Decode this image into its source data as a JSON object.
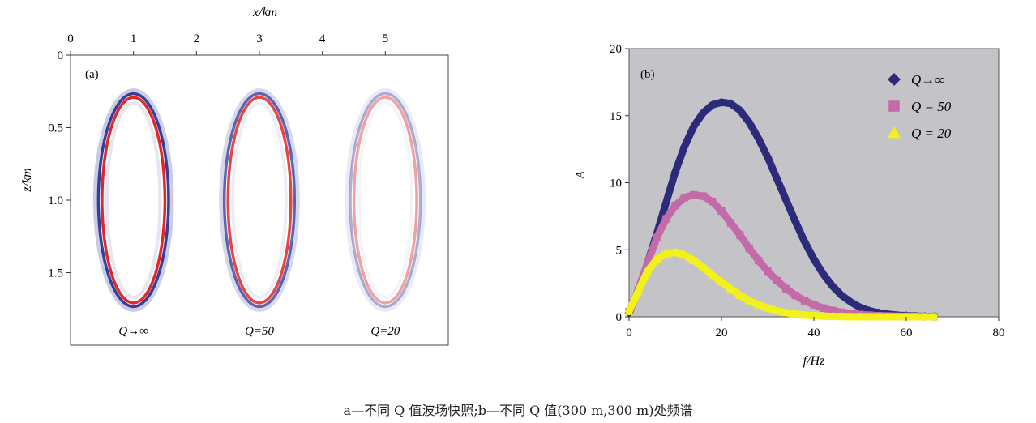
{
  "caption": "a—不同 Q 值波场快照;b—不同 Q 值(300 m,300 m)处频谱",
  "chart_data": [
    {
      "type": "heatmap",
      "panel_label": "(a)",
      "xlabel": "x/km",
      "ylabel": "z/km",
      "xlim": [
        0,
        6
      ],
      "ylim": [
        0,
        2.0
      ],
      "x_ticks": [
        0,
        1,
        2,
        3,
        4,
        5
      ],
      "x_tick_labels": [
        "0",
        "1",
        "2",
        "3",
        "4",
        "5"
      ],
      "y_ticks": [
        0,
        0.5,
        1.0,
        1.5
      ],
      "y_tick_labels": [
        "0",
        "0.5",
        "1.0",
        "1.5"
      ],
      "snapshots": [
        {
          "label": "Q→∞",
          "center_x": 1.0,
          "center_z": 1.0,
          "radius_x": 0.7,
          "radius_z": 0.72,
          "amplitude": 1.0
        },
        {
          "label": "Q=50",
          "center_x": 3.0,
          "center_z": 1.0,
          "radius_x": 0.7,
          "radius_z": 0.72,
          "amplitude": 0.78
        },
        {
          "label": "Q=20",
          "center_x": 5.0,
          "center_z": 1.0,
          "radius_x": 0.7,
          "radius_z": 0.72,
          "amplitude": 0.4
        }
      ],
      "colors": {
        "positive": "#e32626",
        "negative": "#2d3594"
      }
    },
    {
      "type": "scatter",
      "panel_label": "(b)",
      "xlabel": "f/Hz",
      "ylabel": "A",
      "xlim": [
        0,
        80
      ],
      "ylim": [
        0,
        20
      ],
      "x_ticks": [
        0,
        20,
        40,
        60,
        80
      ],
      "x_tick_labels": [
        "0",
        "20",
        "40",
        "60",
        "80"
      ],
      "y_ticks": [
        0,
        5,
        10,
        15,
        20
      ],
      "y_tick_labels": [
        "0",
        "5",
        "10",
        "15",
        "20"
      ],
      "grid": false,
      "legend_position": "top-right",
      "plot_background": "#c4c4c8",
      "x": [
        0,
        2,
        4,
        6,
        8,
        10,
        12,
        14,
        16,
        18,
        20,
        22,
        24,
        26,
        28,
        30,
        32,
        34,
        36,
        38,
        40,
        42,
        44,
        46,
        48,
        50,
        52,
        54,
        56,
        58,
        60,
        62,
        64,
        66
      ],
      "series": [
        {
          "name": "Q→∞",
          "marker": "diamond",
          "color": "#2b2b7a",
          "values": [
            0.3,
            2.0,
            4.0,
            6.2,
            8.5,
            10.8,
            12.7,
            14.2,
            15.2,
            15.8,
            16.0,
            15.9,
            15.4,
            14.5,
            13.3,
            11.9,
            10.3,
            8.7,
            7.1,
            5.6,
            4.3,
            3.2,
            2.3,
            1.6,
            1.1,
            0.7,
            0.45,
            0.3,
            0.2,
            0.12,
            0.08,
            0.05,
            0.03,
            0.02
          ]
        },
        {
          "name": "Q = 50",
          "marker": "square",
          "color": "#c56aa8",
          "values": [
            0.4,
            2.0,
            4.0,
            5.9,
            7.3,
            8.3,
            8.9,
            9.1,
            9.0,
            8.6,
            7.9,
            7.0,
            6.1,
            5.1,
            4.2,
            3.4,
            2.7,
            2.1,
            1.6,
            1.2,
            0.9,
            0.65,
            0.47,
            0.34,
            0.24,
            0.17,
            0.12,
            0.08,
            0.06,
            0.04,
            0.03,
            0.02,
            0.01,
            0.01
          ]
        },
        {
          "name": "Q = 20",
          "marker": "triangle",
          "color": "#f2f21a",
          "values": [
            0.4,
            1.9,
            3.4,
            4.3,
            4.7,
            4.8,
            4.6,
            4.2,
            3.7,
            3.1,
            2.6,
            2.1,
            1.6,
            1.2,
            0.9,
            0.65,
            0.45,
            0.3,
            0.2,
            0.13,
            0.08,
            0.05,
            0.03,
            0.02,
            0.01,
            0.01,
            0.0,
            0.0,
            0.0,
            0.0,
            0.0,
            0.0,
            0.0,
            0.0
          ]
        }
      ]
    }
  ]
}
